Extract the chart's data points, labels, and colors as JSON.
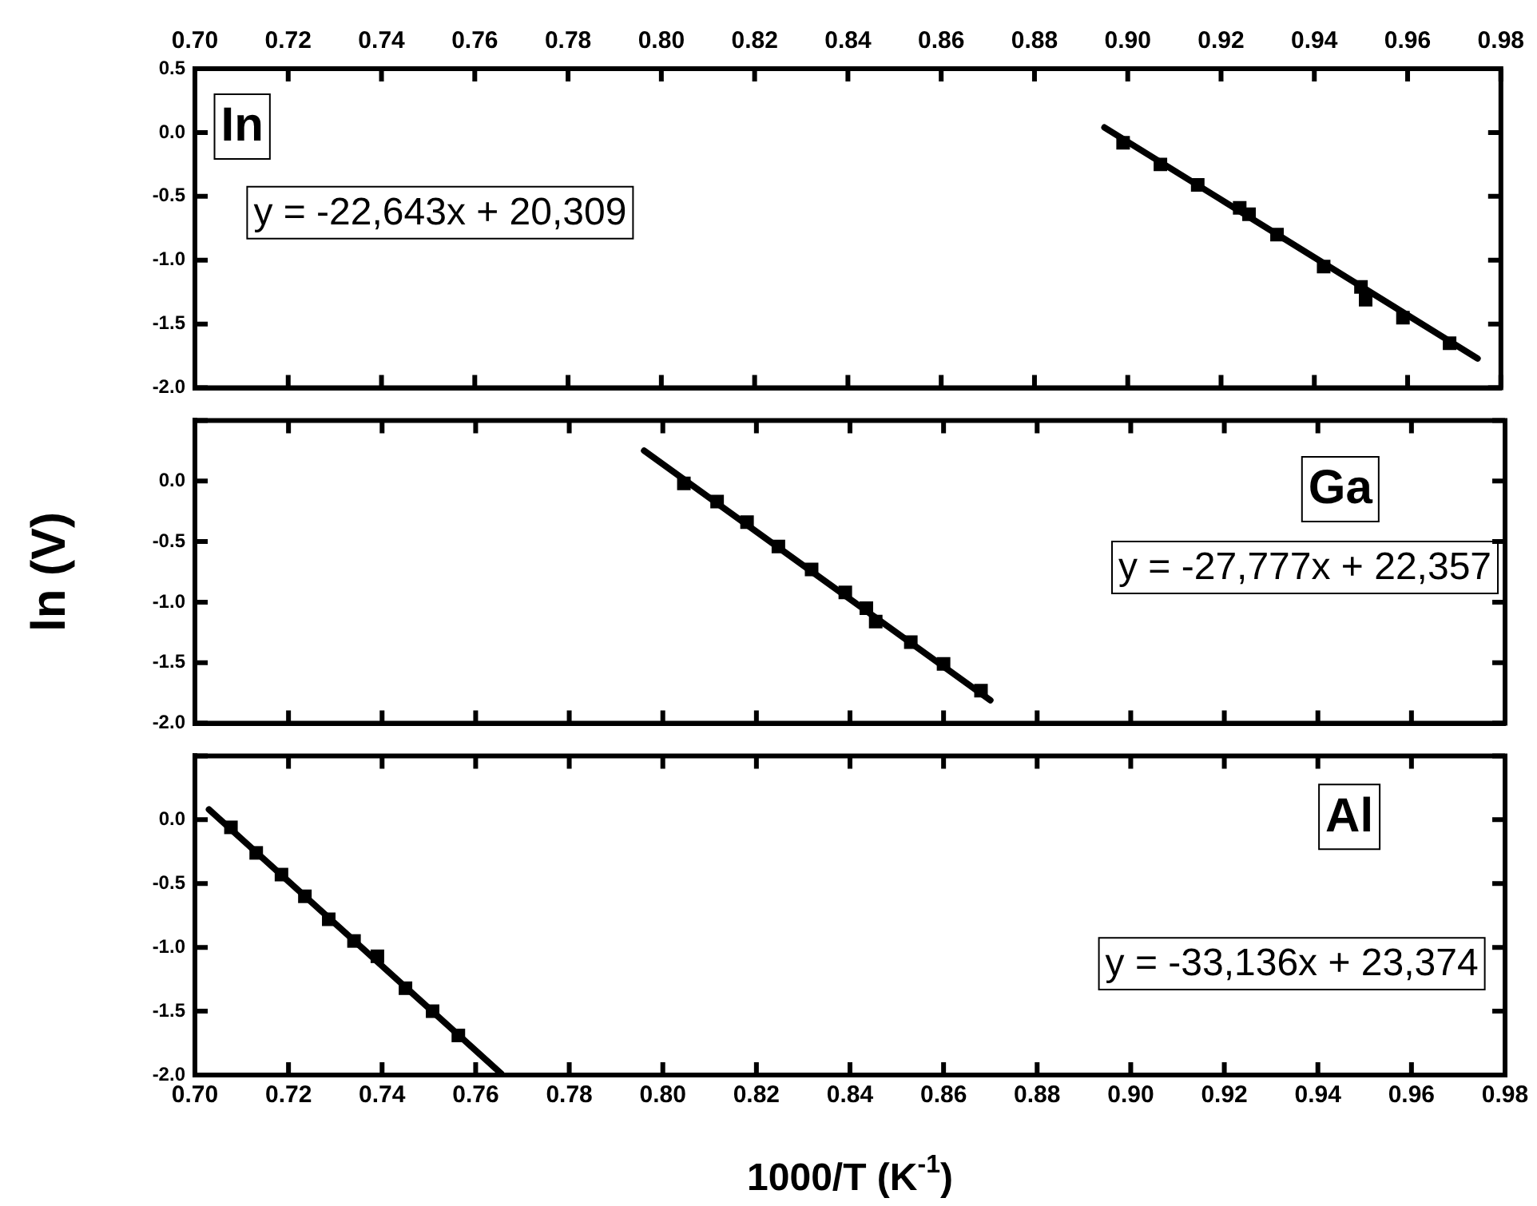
{
  "chart_data": [
    {
      "type": "scatter",
      "xlim": [
        0.7,
        0.98
      ],
      "ylim": [
        -2,
        0.5
      ],
      "tick_labels": "y",
      "grid": false,
      "legend": false,
      "marker": "square",
      "x2lim": [
        0.7,
        0.98
      ],
      "x2ticks": [
        {
          "value": 0.7,
          "label": "0.70"
        },
        {
          "value": 0.72,
          "label": "0.72"
        },
        {
          "value": 0.74,
          "label": "0.74"
        },
        {
          "value": 0.76,
          "label": "0.76"
        },
        {
          "value": 0.78,
          "label": "0.78"
        },
        {
          "value": 0.8,
          "label": "0.80"
        },
        {
          "value": 0.82,
          "label": "0.82"
        },
        {
          "value": 0.84,
          "label": "0.84"
        },
        {
          "value": 0.86,
          "label": "0.86"
        },
        {
          "value": 0.88,
          "label": "0.88"
        },
        {
          "value": 0.9,
          "label": "0.90"
        },
        {
          "value": 0.92,
          "label": "0.92"
        },
        {
          "value": 0.94,
          "label": "0.94"
        },
        {
          "value": 0.96,
          "label": "0.96"
        },
        {
          "value": 0.98,
          "label": "0.98"
        }
      ],
      "yticks": [
        {
          "value": -2,
          "label": "-2.0"
        },
        {
          "value": -1.5,
          "label": "-1.5"
        },
        {
          "value": -1,
          "label": "-1.0"
        },
        {
          "value": -0.5,
          "label": "-0.5"
        },
        {
          "value": 0,
          "label": "0.0"
        },
        {
          "value": 0.5,
          "label": "0.5"
        }
      ],
      "annotations": [
        "In",
        "y = -22,643x + 20,309"
      ],
      "series": [
        {
          "type": "scatter",
          "color": "#000000",
          "x": [
            0.899,
            0.907,
            0.915,
            0.924,
            0.926,
            0.932,
            0.942,
            0.95,
            0.951,
            0.959,
            0.969
          ],
          "values": [
            -0.08,
            -0.25,
            -0.41,
            -0.59,
            -0.64,
            -0.8,
            -1.05,
            -1.21,
            -1.31,
            -1.45,
            -1.65
          ]
        },
        {
          "type": "line",
          "color": "#000000",
          "line_style": "solid",
          "marker": "none",
          "x": [
            0.895,
            0.975
          ],
          "values": [
            0.04,
            -1.77
          ]
        }
      ]
    },
    {
      "type": "scatter",
      "xlim": [
        0.7,
        0.98
      ],
      "ylim": [
        -2,
        0.5
      ],
      "tick_labels": "y",
      "grid": false,
      "legend": false,
      "marker": "square",
      "ylabel": "ln (V)",
      "xticks": [
        {
          "value": 0.7,
          "label": null
        },
        {
          "value": 0.72,
          "label": null
        },
        {
          "value": 0.74,
          "label": null
        },
        {
          "value": 0.76,
          "label": null
        },
        {
          "value": 0.78,
          "label": null
        },
        {
          "value": 0.8,
          "label": null
        },
        {
          "value": 0.82,
          "label": null
        },
        {
          "value": 0.84,
          "label": null
        },
        {
          "value": 0.86,
          "label": null
        },
        {
          "value": 0.88,
          "label": null
        },
        {
          "value": 0.9,
          "label": null
        },
        {
          "value": 0.92,
          "label": null
        },
        {
          "value": 0.94,
          "label": null
        },
        {
          "value": 0.96,
          "label": null
        },
        {
          "value": 0.98,
          "label": null
        }
      ],
      "yticks": [
        {
          "value": -2,
          "label": "-2.0"
        },
        {
          "value": -1.5,
          "label": "-1.5"
        },
        {
          "value": -1,
          "label": "-1.0"
        },
        {
          "value": -0.5,
          "label": "-0.5"
        },
        {
          "value": 0,
          "label": "0.0"
        },
        {
          "value": 0.5,
          "label": null
        }
      ],
      "annotations": [
        "Ga",
        "y = -27,777x + 22,357"
      ],
      "series": [
        {
          "type": "scatter",
          "color": "#000000",
          "x": [
            0.8045,
            0.8116,
            0.818,
            0.8247,
            0.8318,
            0.839,
            0.8435,
            0.8455,
            0.853,
            0.86,
            0.868
          ],
          "values": [
            -0.02,
            -0.17,
            -0.34,
            -0.54,
            -0.73,
            -0.92,
            -1.05,
            -1.16,
            -1.33,
            -1.51,
            -1.73
          ]
        },
        {
          "type": "line",
          "color": "#000000",
          "line_style": "solid",
          "marker": "none",
          "x": [
            0.796,
            0.87
          ],
          "values": [
            0.25,
            -1.81
          ]
        }
      ]
    },
    {
      "type": "scatter",
      "xlim": [
        0.7,
        0.98
      ],
      "ylim": [
        -2,
        0.5
      ],
      "grid": false,
      "legend": false,
      "marker": "square",
      "xlabel": "1000/T (K$^{-1}$)",
      "xticks": [
        {
          "value": 0.7,
          "label": "0.70"
        },
        {
          "value": 0.72,
          "label": "0.72"
        },
        {
          "value": 0.74,
          "label": "0.74"
        },
        {
          "value": 0.76,
          "label": "0.76"
        },
        {
          "value": 0.78,
          "label": "0.78"
        },
        {
          "value": 0.8,
          "label": "0.80"
        },
        {
          "value": 0.82,
          "label": "0.82"
        },
        {
          "value": 0.84,
          "label": "0.84"
        },
        {
          "value": 0.86,
          "label": "0.86"
        },
        {
          "value": 0.88,
          "label": "0.88"
        },
        {
          "value": 0.9,
          "label": "0.90"
        },
        {
          "value": 0.92,
          "label": "0.92"
        },
        {
          "value": 0.94,
          "label": "0.94"
        },
        {
          "value": 0.96,
          "label": "0.96"
        },
        {
          "value": 0.98,
          "label": "0.98"
        }
      ],
      "yticks": [
        {
          "value": -2,
          "label": "-2.0"
        },
        {
          "value": -1.5,
          "label": "-1.5"
        },
        {
          "value": -1,
          "label": "-1.0"
        },
        {
          "value": -0.5,
          "label": "-0.5"
        },
        {
          "value": 0,
          "label": "0.0"
        },
        {
          "value": 0.5,
          "label": null
        }
      ],
      "annotations": [
        "Al",
        "y = -33,136x + 23,374"
      ],
      "series": [
        {
          "type": "scatter",
          "color": "#000000",
          "x": [
            0.7077,
            0.7131,
            0.7185,
            0.7235,
            0.7286,
            0.734,
            0.739,
            0.745,
            0.7508,
            0.7563
          ],
          "values": [
            -0.06,
            -0.26,
            -0.43,
            -0.6,
            -0.78,
            -0.95,
            -1.07,
            -1.32,
            -1.5,
            -1.69
          ]
        },
        {
          "type": "line",
          "color": "#000000",
          "line_style": "solid",
          "marker": "none",
          "x": [
            0.703,
            0.7655
          ],
          "values": [
            0.08,
            -1.99
          ]
        }
      ]
    }
  ]
}
